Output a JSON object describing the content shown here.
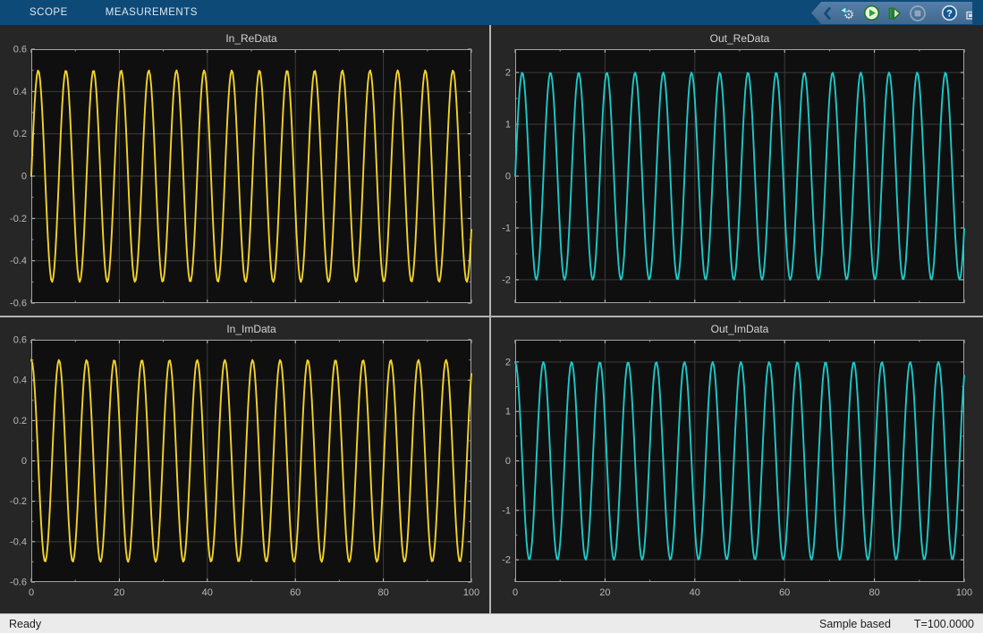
{
  "window": {
    "kind": "simulink-scope"
  },
  "toolbar": {
    "tabs": [
      {
        "label": "SCOPE"
      },
      {
        "label": "MEASUREMENTS"
      }
    ],
    "quick_access": {
      "buttons": [
        {
          "name": "step-settings",
          "icon": "gear-with-arrow-icon",
          "glyph": "⚙"
        },
        {
          "name": "run",
          "icon": "play-circle-icon"
        },
        {
          "name": "step-forward",
          "icon": "step-forward-icon"
        },
        {
          "name": "stop",
          "icon": "stop-circle-icon",
          "disabled": true
        },
        {
          "name": "help",
          "icon": "question-mark-icon",
          "glyph": "?"
        },
        {
          "name": "pop-out",
          "icon": "pop-out-window-icon"
        }
      ]
    }
  },
  "statusbar": {
    "state": "Ready",
    "mode": "Sample based",
    "time": "T=100.0000"
  },
  "colors": {
    "toolstrip_blue": "#0d4a78",
    "quick_access_panel": "#4a739c",
    "workspace_bg": "#262626",
    "axes_bg": "#0f0f0f",
    "grid": "#3c3c3c",
    "axes_border": "#a3a3a3",
    "tick_label": "#b9b9b9",
    "title_text": "#d4d4d4",
    "signal_yellow": "#f3d229",
    "signal_cyan": "#1dc8c8",
    "statusbar_bg": "#ebebeb"
  },
  "chart_data": [
    {
      "type": "line",
      "title": "In_ReData",
      "signal": {
        "formula": "y = amplitude * sin(2*pi*x/period + phase_deg*pi/180)",
        "amplitude": 0.5,
        "period": 6.2832,
        "phase_deg": 0
      },
      "x_range": [
        0,
        100
      ],
      "ylim": [
        -0.6,
        0.6
      ],
      "xticks": [
        0,
        20,
        40,
        60,
        80,
        100
      ],
      "yticks": [
        -0.6,
        -0.4,
        -0.2,
        0,
        0.2,
        0.4,
        0.6
      ],
      "x_minor_step": 10,
      "y_minor_step": 0.1,
      "show_x_labels": false,
      "grid": true,
      "legend": false,
      "line_color": "#f3d229"
    },
    {
      "type": "line",
      "title": "Out_ReData",
      "signal": {
        "formula": "y = amplitude * sin(2*pi*x/period + phase_deg*pi/180)",
        "amplitude": 2,
        "period": 6.2832,
        "phase_deg": 0
      },
      "x_range": [
        0,
        100
      ],
      "ylim": [
        -2.45,
        2.45
      ],
      "xticks": [
        0,
        20,
        40,
        60,
        80,
        100
      ],
      "yticks": [
        -2,
        -1,
        0,
        1,
        2
      ],
      "x_minor_step": 10,
      "y_minor_step": 0.5,
      "show_x_labels": false,
      "grid": true,
      "legend": false,
      "line_color": "#1dc8c8"
    },
    {
      "type": "line",
      "title": "In_ImData",
      "signal": {
        "formula": "y = amplitude * sin(2*pi*x/period + phase_deg*pi/180)",
        "amplitude": 0.5,
        "period": 6.2832,
        "phase_deg": 90
      },
      "x_range": [
        0,
        100
      ],
      "ylim": [
        -0.6,
        0.6
      ],
      "xticks": [
        0,
        20,
        40,
        60,
        80,
        100
      ],
      "yticks": [
        -0.6,
        -0.4,
        -0.2,
        0,
        0.2,
        0.4,
        0.6
      ],
      "x_minor_step": 10,
      "y_minor_step": 0.1,
      "show_x_labels": true,
      "grid": true,
      "legend": false,
      "line_color": "#f3d229"
    },
    {
      "type": "line",
      "title": "Out_ImData",
      "signal": {
        "formula": "y = amplitude * sin(2*pi*x/period + phase_deg*pi/180)",
        "amplitude": 2,
        "period": 6.2832,
        "phase_deg": 90
      },
      "x_range": [
        0,
        100
      ],
      "ylim": [
        -2.45,
        2.45
      ],
      "xticks": [
        0,
        20,
        40,
        60,
        80,
        100
      ],
      "yticks": [
        -2,
        -1,
        0,
        1,
        2
      ],
      "x_minor_step": 10,
      "y_minor_step": 0.5,
      "show_x_labels": true,
      "grid": true,
      "legend": false,
      "line_color": "#1dc8c8"
    }
  ]
}
